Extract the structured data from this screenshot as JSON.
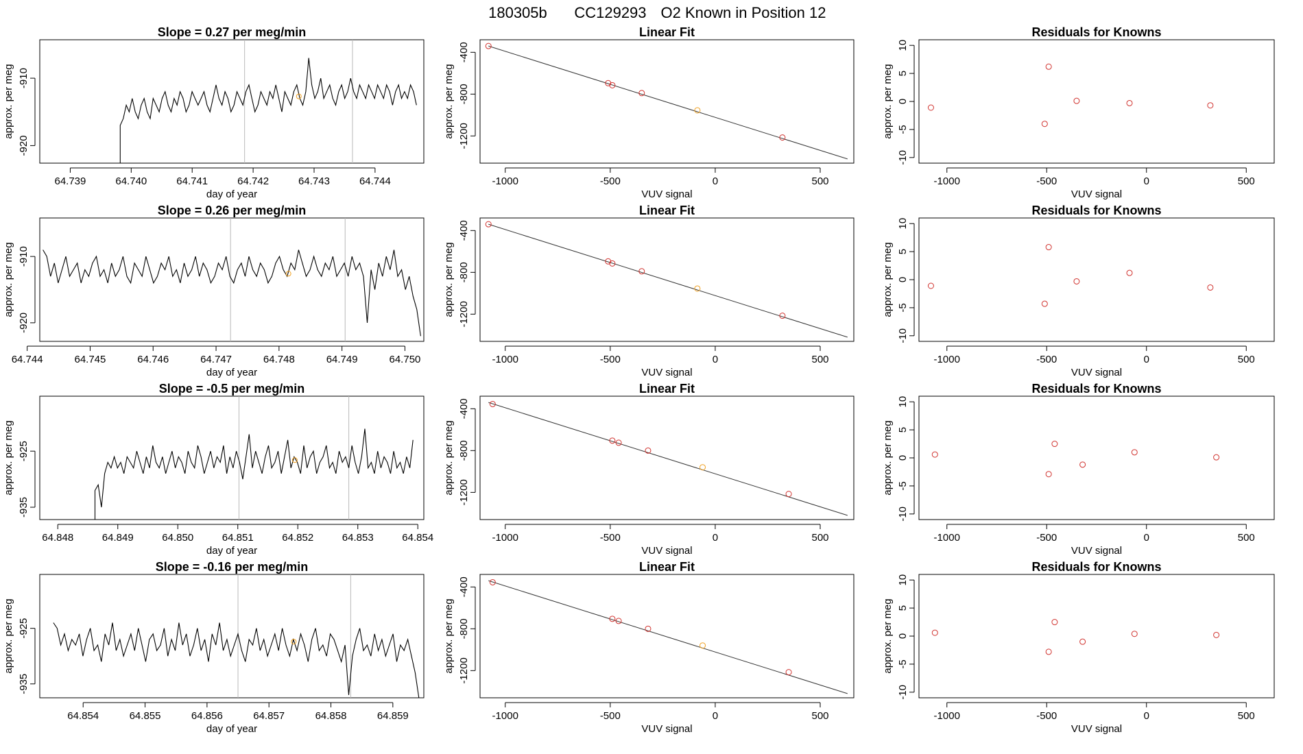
{
  "header": {
    "title_parts": [
      "180305b",
      "CC129293",
      "O2 Known in Position  12"
    ]
  },
  "chart_data": [
    {
      "type": "line",
      "panel": "time-series",
      "row": 1,
      "title": "Slope =  0.27  per meg/min",
      "xlabel": "day of year",
      "ylabel": "approx. per meg",
      "xlim": [
        64.7385,
        64.7448
      ],
      "ylim": [
        -922.6,
        -904.3
      ],
      "xticks": [
        64.739,
        64.74,
        64.741,
        64.742,
        64.743,
        64.744
      ],
      "xtick_labels": [
        "64.739",
        "64.740",
        "64.741",
        "64.742",
        "64.743",
        "64.744"
      ],
      "yticks": [
        -920,
        -910
      ],
      "ytick_labels": [
        "-920",
        "-910"
      ],
      "vlines": [
        64.74186,
        64.74363
      ],
      "highlight": {
        "x": 64.74275,
        "y": -912.7
      },
      "series": {
        "x_start": 64.73982,
        "x_end": 64.74468,
        "start_drop": -922.6,
        "values": [
          -917,
          -916,
          -914,
          -915,
          -913,
          -915,
          -916,
          -914,
          -913,
          -915,
          -916,
          -913,
          -914,
          -915,
          -913,
          -912,
          -914,
          -915,
          -913,
          -914,
          -912,
          -913,
          -915,
          -914,
          -912,
          -913,
          -914,
          -913,
          -912,
          -914,
          -915,
          -913,
          -911,
          -913,
          -914,
          -912,
          -913,
          -915,
          -914,
          -912,
          -913,
          -914,
          -912,
          -911,
          -913,
          -915,
          -914,
          -912,
          -913,
          -914,
          -912,
          -913,
          -911,
          -913,
          -915,
          -912,
          -913,
          -914,
          -912,
          -911,
          -913,
          -914,
          -912,
          -907,
          -911,
          -913,
          -912,
          -910,
          -913,
          -912,
          -911,
          -913,
          -914,
          -912,
          -911,
          -913,
          -912,
          -910,
          -912,
          -913,
          -911,
          -912,
          -913,
          -911,
          -912,
          -913,
          -911,
          -912,
          -913,
          -911,
          -912,
          -914,
          -912,
          -911,
          -913,
          -912,
          -913,
          -911,
          -912,
          -914
        ]
      }
    },
    {
      "type": "scatter",
      "panel": "linear-fit",
      "row": 1,
      "title": "Linear Fit",
      "xlabel": "VUV signal",
      "ylabel": "approx. per meg",
      "xlim": [
        -1120,
        660
      ],
      "ylim": [
        -1460,
        -280
      ],
      "xticks": [
        -1000,
        -500,
        0,
        500
      ],
      "xtick_labels": [
        "-1000",
        "-500",
        "0",
        "500"
      ],
      "yticks": [
        -1200,
        -800,
        -400
      ],
      "ytick_labels": [
        "-1200",
        "-800",
        "-400"
      ],
      "fit": {
        "x1": -1080,
        "y1": -340,
        "x2": 630,
        "y2": -1420
      },
      "points": [
        {
          "x": -1080,
          "y": -340
        },
        {
          "x": -510,
          "y": -695
        },
        {
          "x": -490,
          "y": -715
        },
        {
          "x": -350,
          "y": -790
        },
        {
          "x": -85,
          "y": -955
        },
        {
          "x": 320,
          "y": -1215
        }
      ],
      "highlight_index": 4
    },
    {
      "type": "scatter",
      "panel": "residuals",
      "row": 1,
      "title": "Residuals for Knowns",
      "xlabel": "VUV signal",
      "ylabel": "approx. per meg",
      "xlim": [
        -1140,
        640
      ],
      "ylim": [
        -11,
        11
      ],
      "xticks": [
        -1000,
        -500,
        0,
        500
      ],
      "xtick_labels": [
        "-1000",
        "-500",
        "0",
        "500"
      ],
      "yticks": [
        -10,
        -5,
        0,
        5,
        10
      ],
      "ytick_labels": [
        "-10",
        "-5",
        "0",
        "5",
        "10"
      ],
      "points": [
        {
          "x": -1080,
          "y": -1.1
        },
        {
          "x": -510,
          "y": -4.0
        },
        {
          "x": -490,
          "y": 6.2
        },
        {
          "x": -350,
          "y": 0.1
        },
        {
          "x": -85,
          "y": -0.3
        },
        {
          "x": 320,
          "y": -0.7
        }
      ]
    },
    {
      "type": "line",
      "panel": "time-series",
      "row": 2,
      "title": "Slope =  0.26  per meg/min",
      "xlabel": "day of year",
      "ylabel": "approx. per meg",
      "xlim": [
        64.7442,
        64.7503
      ],
      "ylim": [
        -922.8,
        -904.2
      ],
      "xticks": [
        64.744,
        64.745,
        64.746,
        64.747,
        64.748,
        64.749,
        64.75
      ],
      "xtick_labels": [
        "64.744",
        "64.745",
        "64.746",
        "64.747",
        "64.748",
        "64.749",
        "64.750"
      ],
      "yticks": [
        -920,
        -910
      ],
      "ytick_labels": [
        "-920",
        "-910"
      ],
      "vlines": [
        64.74723,
        64.74905
      ],
      "highlight": {
        "x": 64.74815,
        "y": -912.6
      },
      "series": {
        "x_start": 64.74425,
        "x_end": 64.75025,
        "values": [
          -909,
          -910,
          -913,
          -911,
          -914,
          -912,
          -910,
          -913,
          -912,
          -911,
          -914,
          -912,
          -913,
          -911,
          -910,
          -913,
          -912,
          -914,
          -911,
          -913,
          -912,
          -910,
          -913,
          -914,
          -911,
          -912,
          -913,
          -910,
          -912,
          -914,
          -913,
          -911,
          -912,
          -910,
          -913,
          -912,
          -914,
          -911,
          -913,
          -912,
          -910,
          -913,
          -911,
          -912,
          -914,
          -913,
          -911,
          -912,
          -910,
          -913,
          -914,
          -912,
          -911,
          -913,
          -910,
          -912,
          -913,
          -911,
          -912,
          -914,
          -913,
          -911,
          -910,
          -912,
          -913,
          -911,
          -912,
          -909,
          -911,
          -913,
          -912,
          -910,
          -912,
          -913,
          -911,
          -912,
          -910,
          -913,
          -912,
          -911,
          -913,
          -910,
          -912,
          -911,
          -913,
          -920,
          -912,
          -915,
          -911,
          -913,
          -910,
          -912,
          -909,
          -913,
          -912,
          -915,
          -913,
          -916,
          -918,
          -922
        ]
      }
    },
    {
      "type": "scatter",
      "panel": "linear-fit",
      "row": 2,
      "title": "Linear Fit",
      "xlabel": "VUV signal",
      "ylabel": "approx. per meg",
      "xlim": [
        -1120,
        660
      ],
      "ylim": [
        -1460,
        -280
      ],
      "xticks": [
        -1000,
        -500,
        0,
        500
      ],
      "xtick_labels": [
        "-1000",
        "-500",
        "0",
        "500"
      ],
      "yticks": [
        -1200,
        -800,
        -400
      ],
      "ytick_labels": [
        "-1200",
        "-800",
        "-400"
      ],
      "fit": {
        "x1": -1080,
        "y1": -340,
        "x2": 630,
        "y2": -1420
      },
      "points": [
        {
          "x": -1080,
          "y": -340
        },
        {
          "x": -510,
          "y": -695
        },
        {
          "x": -490,
          "y": -715
        },
        {
          "x": -350,
          "y": -790
        },
        {
          "x": -85,
          "y": -955
        },
        {
          "x": 320,
          "y": -1215
        }
      ],
      "highlight_index": 4
    },
    {
      "type": "scatter",
      "panel": "residuals",
      "row": 2,
      "title": "Residuals for Knowns",
      "xlabel": "VUV signal",
      "ylabel": "approx. per meg",
      "xlim": [
        -1140,
        640
      ],
      "ylim": [
        -11,
        11
      ],
      "xticks": [
        -1000,
        -500,
        0,
        500
      ],
      "xtick_labels": [
        "-1000",
        "-500",
        "0",
        "500"
      ],
      "yticks": [
        -10,
        -5,
        0,
        5,
        10
      ],
      "ytick_labels": [
        "-10",
        "-5",
        "0",
        "5",
        "10"
      ],
      "points": [
        {
          "x": -1080,
          "y": -1.1
        },
        {
          "x": -510,
          "y": -4.3
        },
        {
          "x": -490,
          "y": 5.8
        },
        {
          "x": -350,
          "y": -0.3
        },
        {
          "x": -85,
          "y": 1.2
        },
        {
          "x": 320,
          "y": -1.4
        }
      ]
    },
    {
      "type": "line",
      "panel": "time-series",
      "row": 3,
      "title": "Slope =  -0.5  per meg/min",
      "xlabel": "day of year",
      "ylabel": "approx. per meg",
      "xlim": [
        64.8477,
        64.8541
      ],
      "ylim": [
        -937.2,
        -915.2
      ],
      "xticks": [
        64.848,
        64.849,
        64.85,
        64.851,
        64.852,
        64.853,
        64.854
      ],
      "xtick_labels": [
        "64.848",
        "64.849",
        "64.850",
        "64.851",
        "64.852",
        "64.853",
        "64.854"
      ],
      "yticks": [
        -935,
        -925
      ],
      "ytick_labels": [
        "-935",
        "-925"
      ],
      "vlines": [
        64.85102,
        64.85285
      ],
      "highlight": {
        "x": 64.85195,
        "y": -926.6
      },
      "series": {
        "x_start": 64.84862,
        "x_end": 64.85392,
        "start_drop": -937.2,
        "values": [
          -932,
          -931,
          -935,
          -929,
          -927,
          -928,
          -926,
          -928,
          -927,
          -929,
          -926,
          -927,
          -928,
          -925,
          -927,
          -929,
          -926,
          -928,
          -924,
          -927,
          -928,
          -926,
          -929,
          -927,
          -925,
          -928,
          -926,
          -927,
          -929,
          -925,
          -927,
          -928,
          -924,
          -926,
          -929,
          -927,
          -925,
          -928,
          -926,
          -927,
          -924,
          -929,
          -926,
          -928,
          -925,
          -927,
          -930,
          -926,
          -922,
          -928,
          -925,
          -927,
          -929,
          -926,
          -924,
          -928,
          -927,
          -925,
          -929,
          -926,
          -923,
          -928,
          -926,
          -927,
          -929,
          -924,
          -928,
          -926,
          -925,
          -929,
          -927,
          -926,
          -924,
          -928,
          -927,
          -929,
          -925,
          -927,
          -926,
          -928,
          -924,
          -927,
          -929,
          -926,
          -921,
          -928,
          -927,
          -929,
          -925,
          -928,
          -926,
          -927,
          -929,
          -925,
          -928,
          -927,
          -929,
          -926,
          -928,
          -923
        ]
      }
    },
    {
      "type": "scatter",
      "panel": "linear-fit",
      "row": 3,
      "title": "Linear Fit",
      "xlabel": "VUV signal",
      "ylabel": "approx. per meg",
      "xlim": [
        -1120,
        660
      ],
      "ylim": [
        -1460,
        -280
      ],
      "xticks": [
        -1000,
        -500,
        0,
        500
      ],
      "xtick_labels": [
        "-1000",
        "-500",
        "0",
        "500"
      ],
      "yticks": [
        -1200,
        -800,
        -400
      ],
      "ytick_labels": [
        "-1200",
        "-800",
        "-400"
      ],
      "fit": {
        "x1": -1080,
        "y1": -340,
        "x2": 630,
        "y2": -1420
      },
      "points": [
        {
          "x": -1060,
          "y": -355
        },
        {
          "x": -490,
          "y": -705
        },
        {
          "x": -460,
          "y": -725
        },
        {
          "x": -320,
          "y": -800
        },
        {
          "x": -60,
          "y": -960
        },
        {
          "x": 350,
          "y": -1215
        }
      ],
      "highlight_index": 4
    },
    {
      "type": "scatter",
      "panel": "residuals",
      "row": 3,
      "title": "Residuals for Knowns",
      "xlabel": "VUV signal",
      "ylabel": "approx. per meg",
      "xlim": [
        -1140,
        640
      ],
      "ylim": [
        -11,
        11
      ],
      "xticks": [
        -1000,
        -500,
        0,
        500
      ],
      "xtick_labels": [
        "-1000",
        "-500",
        "0",
        "500"
      ],
      "yticks": [
        -10,
        -5,
        0,
        5,
        10
      ],
      "ytick_labels": [
        "-10",
        "-5",
        "0",
        "5",
        "10"
      ],
      "points": [
        {
          "x": -1060,
          "y": 0.6
        },
        {
          "x": -490,
          "y": -2.9
        },
        {
          "x": -460,
          "y": 2.5
        },
        {
          "x": -320,
          "y": -1.2
        },
        {
          "x": -60,
          "y": 1.0
        },
        {
          "x": 350,
          "y": 0.1
        }
      ]
    },
    {
      "type": "line",
      "panel": "time-series",
      "row": 4,
      "title": "Slope =  -0.16  per meg/min",
      "xlabel": "day of year",
      "ylabel": "approx. per meg",
      "xlim": [
        64.8533,
        64.8595
      ],
      "ylim": [
        -937.5,
        -915.3
      ],
      "xticks": [
        64.854,
        64.855,
        64.856,
        64.857,
        64.858,
        64.859
      ],
      "xtick_labels": [
        "64.854",
        "64.855",
        "64.856",
        "64.857",
        "64.858",
        "64.859"
      ],
      "yticks": [
        -935,
        -925
      ],
      "ytick_labels": [
        "-935",
        "-925"
      ],
      "vlines": [
        64.8565,
        64.85832
      ],
      "highlight": {
        "x": 64.8574,
        "y": -927.4
      },
      "series": {
        "x_start": 64.85352,
        "x_end": 64.85942,
        "values": [
          -924,
          -925,
          -928,
          -926,
          -929,
          -927,
          -928,
          -926,
          -930,
          -927,
          -925,
          -929,
          -928,
          -931,
          -926,
          -928,
          -924,
          -929,
          -927,
          -930,
          -928,
          -926,
          -929,
          -925,
          -928,
          -931,
          -927,
          -926,
          -929,
          -928,
          -925,
          -930,
          -927,
          -929,
          -924,
          -928,
          -926,
          -930,
          -928,
          -925,
          -929,
          -927,
          -931,
          -926,
          -928,
          -924,
          -929,
          -927,
          -930,
          -928,
          -926,
          -929,
          -931,
          -927,
          -928,
          -925,
          -929,
          -927,
          -930,
          -928,
          -926,
          -929,
          -925,
          -928,
          -930,
          -927,
          -929,
          -926,
          -928,
          -931,
          -927,
          -925,
          -929,
          -928,
          -930,
          -926,
          -927,
          -929,
          -931,
          -928,
          -937,
          -930,
          -927,
          -925,
          -929,
          -928,
          -930,
          -926,
          -929,
          -927,
          -930,
          -928,
          -926,
          -931,
          -928,
          -929,
          -927,
          -930,
          -933,
          -937.5
        ]
      }
    },
    {
      "type": "scatter",
      "panel": "linear-fit",
      "row": 4,
      "title": "Linear Fit",
      "xlabel": "VUV signal",
      "ylabel": "approx. per meg",
      "xlim": [
        -1120,
        660
      ],
      "ylim": [
        -1460,
        -280
      ],
      "xticks": [
        -1000,
        -500,
        0,
        500
      ],
      "xtick_labels": [
        "-1000",
        "-500",
        "0",
        "500"
      ],
      "yticks": [
        -1200,
        -800,
        -400
      ],
      "ytick_labels": [
        "-1200",
        "-800",
        "-400"
      ],
      "fit": {
        "x1": -1080,
        "y1": -340,
        "x2": 630,
        "y2": -1420
      },
      "points": [
        {
          "x": -1060,
          "y": -355
        },
        {
          "x": -490,
          "y": -705
        },
        {
          "x": -460,
          "y": -725
        },
        {
          "x": -320,
          "y": -800
        },
        {
          "x": -60,
          "y": -960
        },
        {
          "x": 350,
          "y": -1215
        }
      ],
      "highlight_index": 4
    },
    {
      "type": "scatter",
      "panel": "residuals",
      "row": 4,
      "title": "Residuals for Knowns",
      "xlabel": "VUV signal",
      "ylabel": "approx. per meg",
      "xlim": [
        -1140,
        640
      ],
      "ylim": [
        -11,
        11
      ],
      "xticks": [
        -1000,
        -500,
        0,
        500
      ],
      "xtick_labels": [
        "-1000",
        "-500",
        "0",
        "500"
      ],
      "yticks": [
        -10,
        -5,
        0,
        5,
        10
      ],
      "ytick_labels": [
        "-10",
        "-5",
        "0",
        "5",
        "10"
      ],
      "points": [
        {
          "x": -1060,
          "y": 0.6
        },
        {
          "x": -490,
          "y": -2.8
        },
        {
          "x": -460,
          "y": 2.5
        },
        {
          "x": -320,
          "y": -1.0
        },
        {
          "x": -60,
          "y": 0.4
        },
        {
          "x": 350,
          "y": 0.2
        }
      ]
    }
  ],
  "colors": {
    "line": "#000000",
    "fit_line": "#333333",
    "point": "#d0312d",
    "highlight": "#f0a020",
    "marker_line": "#b8b8b8"
  }
}
